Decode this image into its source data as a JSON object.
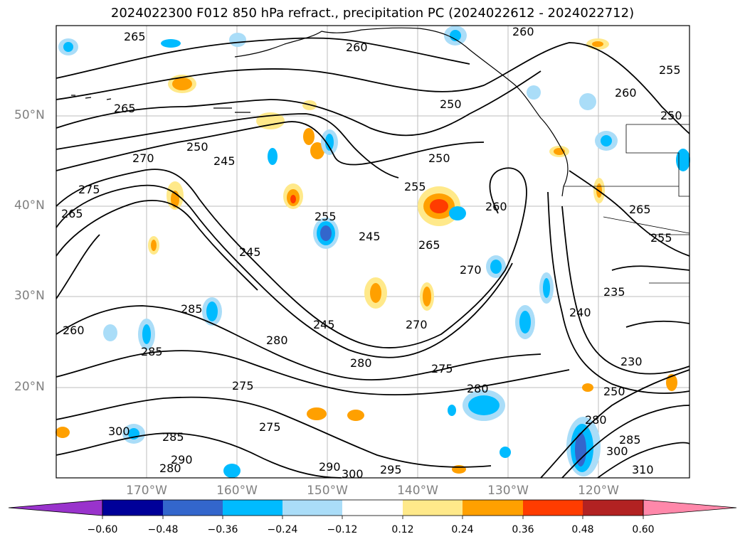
{
  "title": "2024022300 F012 850 hPa refract., precipitation PC (2024022612 - 2024022712)",
  "latitude_labels": [
    "50°N",
    "40°N",
    "30°N",
    "20°N"
  ],
  "longitude_labels": [
    "170°W",
    "160°W",
    "150°W",
    "140°W",
    "130°W",
    "120°W"
  ],
  "contour_labels": [
    "265",
    "260",
    "260",
    "255",
    "260",
    "250",
    "265",
    "250",
    "270",
    "245",
    "250",
    "275",
    "265",
    "255",
    "260",
    "265",
    "255",
    "250",
    "245",
    "255",
    "265",
    "245",
    "270",
    "285",
    "235",
    "240",
    "260",
    "245",
    "280",
    "285",
    "280",
    "275",
    "270",
    "275",
    "280",
    "230",
    "275",
    "250",
    "280",
    "285",
    "300",
    "290",
    "280",
    "300",
    "310",
    "295",
    "290",
    "300",
    "285"
  ],
  "colorbar": {
    "tick_labels": [
      "−0.60",
      "−0.48",
      "−0.36",
      "−0.24",
      "−0.12",
      "0.12",
      "0.24",
      "0.36",
      "0.48",
      "0.60"
    ],
    "colors": [
      "#9933cc",
      "#000099",
      "#3366cc",
      "#00bbff",
      "#aaddf8",
      "#ffffff",
      "#ffe98a",
      "#ffa000",
      "#ff3c00",
      "#b22222",
      "#ff88aa"
    ]
  },
  "fill_colors": {
    "light_blue": "#aaddf8",
    "cyan": "#00bbff",
    "blue": "#3366cc",
    "yellow": "#ffe98a",
    "orange": "#ffa000",
    "red_orange": "#ff3c00"
  }
}
